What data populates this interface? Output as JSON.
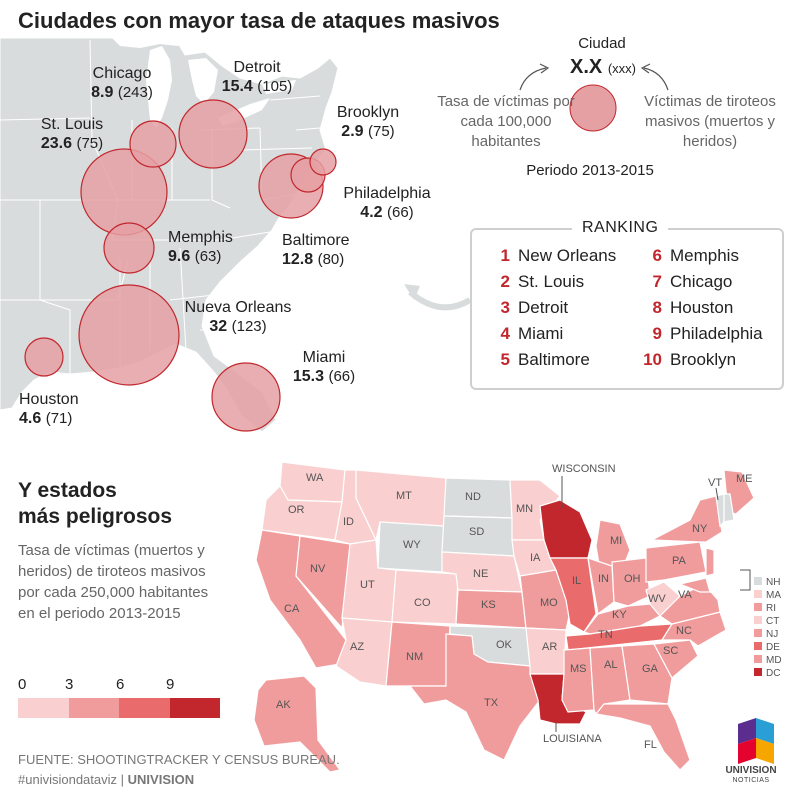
{
  "title": "Ciudades con mayor tasa de ataques masivos",
  "cities": [
    {
      "name": "Chicago",
      "rate": "8.9",
      "count": "(243)"
    },
    {
      "name": "Detroit",
      "rate": "15.4",
      "count": "(105)"
    },
    {
      "name": "Brooklyn",
      "rate": "2.9",
      "count": "(75)"
    },
    {
      "name": "St. Louis",
      "rate": "23.6",
      "count": "(75)"
    },
    {
      "name": "Philadelphia",
      "rate": "4.2",
      "count": "(66)"
    },
    {
      "name": "Memphis",
      "rate": "9.6",
      "count": "(63)"
    },
    {
      "name": "Baltimore",
      "rate": "12.8",
      "count": "(80)"
    },
    {
      "name": "Nueva Orleans",
      "rate": "32",
      "count": "(123)"
    },
    {
      "name": "Miami",
      "rate": "15.3",
      "count": "(66)"
    },
    {
      "name": "Houston",
      "rate": "4.6",
      "count": "(71)"
    }
  ],
  "legend": {
    "city": "Ciudad",
    "xx": "X.X",
    "xxx": "(xxx)",
    "left": "Tasa de víctimas por cada 100,000 habitantes",
    "right": "Víctimas de tiroteos masivos (muertos y heridos)",
    "period": "Periodo 2013-2015"
  },
  "ranking": {
    "title": "RANKING",
    "items": [
      {
        "rank": "1",
        "city": "New Orleans"
      },
      {
        "rank": "2",
        "city": "St. Louis"
      },
      {
        "rank": "3",
        "city": "Detroit"
      },
      {
        "rank": "4",
        "city": "Miami"
      },
      {
        "rank": "5",
        "city": "Baltimore"
      },
      {
        "rank": "6",
        "city": "Memphis"
      },
      {
        "rank": "7",
        "city": "Chicago"
      },
      {
        "rank": "8",
        "city": "Houston"
      },
      {
        "rank": "9",
        "city": "Philadelphia"
      },
      {
        "rank": "10",
        "city": "Brooklyn"
      }
    ]
  },
  "states_section": {
    "title_line1": "Y estados",
    "title_line2": "más peligrosos",
    "description": "Tasa de víctimas (muertos y heridos) de tiroteos masivos por cada 250,000 habitantes en el periodo 2013-2015",
    "scale_labels": [
      "0",
      "3",
      "6",
      "9"
    ],
    "scale_colors": [
      "#f9cfcf",
      "#f19c9c",
      "#ea6b6b",
      "#c1272d"
    ],
    "callouts": {
      "wisconsin": "WISCONSIN",
      "louisiana": "LOUISIANA"
    },
    "state_labels": {
      "WA": "WA",
      "OR": "OR",
      "ID": "ID",
      "MT": "MT",
      "ND": "ND",
      "MN": "MN",
      "WY": "WY",
      "SD": "SD",
      "NE": "NE",
      "IA": "IA",
      "NV": "NV",
      "UT": "UT",
      "CO": "CO",
      "KS": "KS",
      "MO": "MO",
      "IL": "IL",
      "IN": "IN",
      "OH": "OH",
      "MI": "MI",
      "CA": "CA",
      "AZ": "AZ",
      "NM": "NM",
      "OK": "OK",
      "AR": "AR",
      "TN": "TN",
      "KY": "KY",
      "WV": "WV",
      "VA": "VA",
      "NC": "NC",
      "SC": "SC",
      "GA": "GA",
      "AL": "AL",
      "MS": "MS",
      "TX": "TX",
      "FL": "FL",
      "PA": "PA",
      "NY": "NY",
      "VT": "VT",
      "ME": "ME",
      "AK": "AK"
    },
    "small_states": [
      {
        "code": "NH",
        "color": "#d9dcdd"
      },
      {
        "code": "MA",
        "color": "#f9cfcf"
      },
      {
        "code": "RI",
        "color": "#f19c9c"
      },
      {
        "code": "CT",
        "color": "#f9cfcf"
      },
      {
        "code": "NJ",
        "color": "#f19c9c"
      },
      {
        "code": "DE",
        "color": "#ea6b6b"
      },
      {
        "code": "MD",
        "color": "#f19c9c"
      },
      {
        "code": "DC",
        "color": "#c1272d"
      }
    ]
  },
  "source": {
    "line1": "FUENTE: SHOOTINGTRACKER Y CENSUS BUREAU.",
    "hashtag": "#univisiondataviz",
    "separator": "|",
    "brand": "UNIVISION"
  },
  "logo": {
    "name": "UNIVISION",
    "sub": "NOTICIAS"
  },
  "colors": {
    "bubble_fill": "#e5a0a3",
    "bubble_stroke": "#c1272d",
    "map_gray": "#d9dcdd",
    "accent_red": "#c1272d"
  }
}
